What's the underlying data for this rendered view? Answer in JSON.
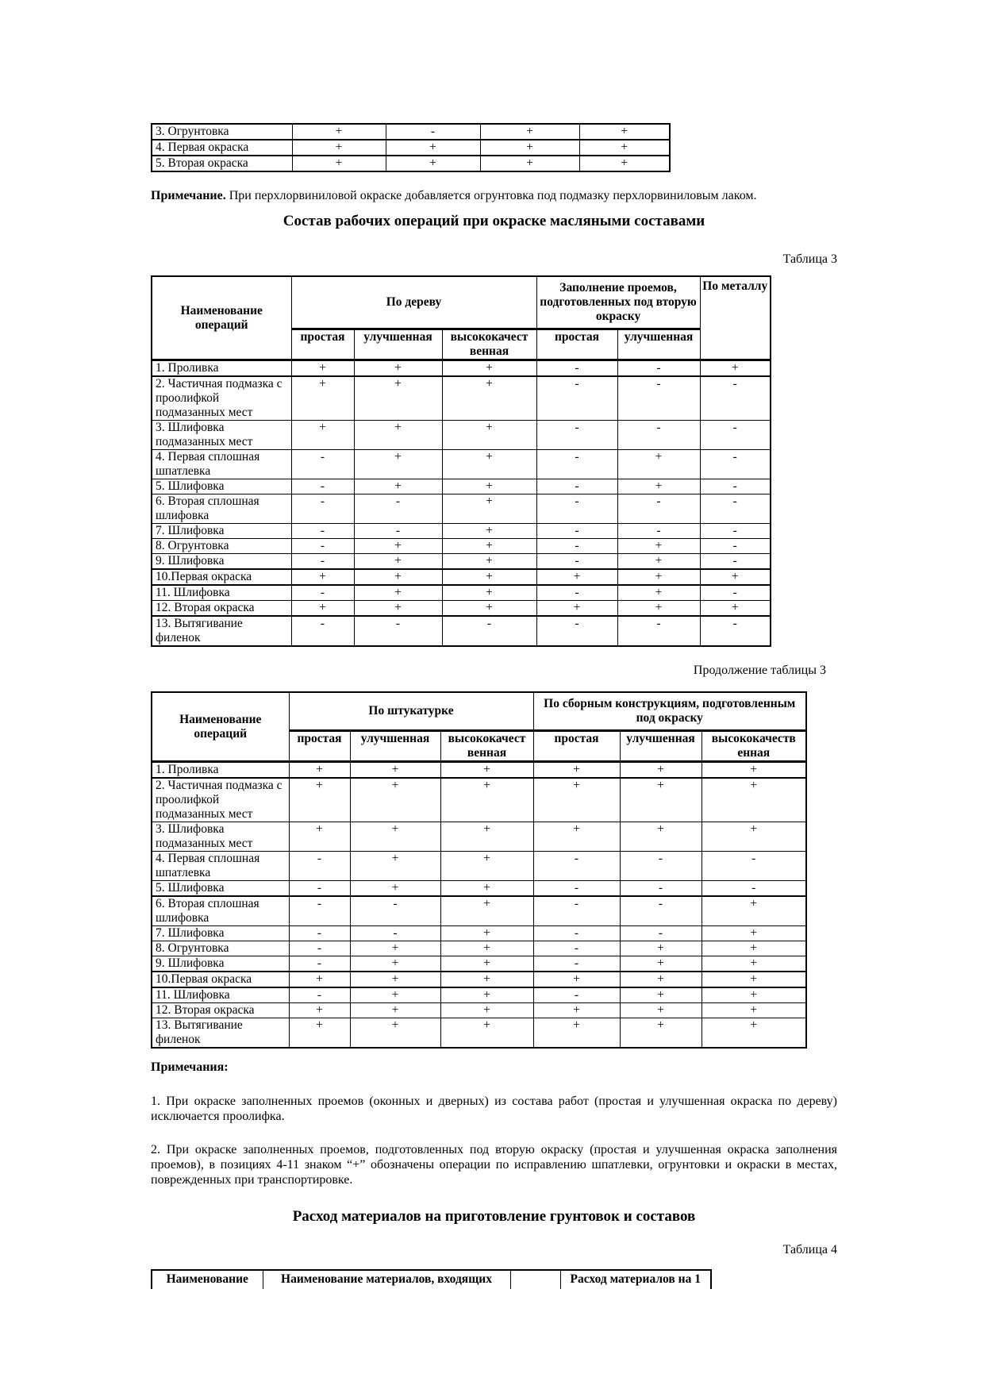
{
  "document": {
    "top_table": {
      "rows": [
        {
          "label": "3. Огрунтовка",
          "values": [
            "+",
            "-",
            "+",
            "+"
          ]
        },
        {
          "label": "4. Первая окраска",
          "values": [
            "+",
            "+",
            "+",
            "+"
          ]
        },
        {
          "label": "5. Вторая окраска",
          "values": [
            "+",
            "+",
            "+",
            "+"
          ]
        }
      ]
    },
    "top_note": {
      "label": "Примечание.",
      "text": " При перхлорвиниловой окраске добавляется огрунтовка под подмазку перхлорвиниловым лаком."
    },
    "oil_section": {
      "title": "Состав рабочих операций при окраске масляными составами",
      "caption": "Таблица 3",
      "table": {
        "operations_header": "Наименование операций",
        "groups": [
          {
            "label": "По дереву",
            "subs": [
              "простая",
              "улучшенная",
              "высококачест венная"
            ]
          },
          {
            "label": "Заполнение проемов, подготовленных под вторую окраску",
            "subs": [
              "простая",
              "улучшенная"
            ]
          },
          {
            "label": "По металлу",
            "subs": []
          }
        ],
        "rows": [
          {
            "label": "1. Проливка",
            "values": [
              "+",
              "+",
              "+",
              "-",
              "-",
              "+"
            ]
          },
          {
            "label": "2. Частичная подмазка с проолифкой подмазанных мест",
            "values": [
              "+",
              "+",
              "+",
              "-",
              "-",
              "-"
            ]
          },
          {
            "label": "3. Шлифовка подмазанных мест",
            "values": [
              "+",
              "+",
              "+",
              "-",
              "-",
              "-"
            ]
          },
          {
            "label": "4. Первая сплошная шпатлевка",
            "values": [
              "-",
              "+",
              "+",
              "-",
              "+",
              "-"
            ]
          },
          {
            "label": "5. Шлифовка",
            "values": [
              "-",
              "+",
              "+",
              "-",
              "+",
              "-"
            ]
          },
          {
            "label": "6. Вторая сплошная шлифовка",
            "values": [
              "-",
              "-",
              "+",
              "-",
              "-",
              "-"
            ]
          },
          {
            "label": "7. Шлифовка",
            "values": [
              "-",
              "-",
              "+",
              "-",
              "-",
              "-"
            ]
          },
          {
            "label": "8. Огрунтовка",
            "values": [
              "-",
              "+",
              "+",
              "-",
              "+",
              "-"
            ]
          },
          {
            "label": "9. Шлифовка",
            "values": [
              "-",
              "+",
              "+",
              "-",
              "+",
              "-"
            ]
          },
          {
            "label": "10.Первая окраска",
            "values": [
              "+",
              "+",
              "+",
              "+",
              "+",
              "+"
            ]
          },
          {
            "label": "11. Шлифовка",
            "values": [
              "-",
              "+",
              "+",
              "-",
              "+",
              "-"
            ]
          },
          {
            "label": "12. Вторая окраска",
            "values": [
              "+",
              "+",
              "+",
              "+",
              "+",
              "+"
            ]
          },
          {
            "label": "13. Вытягивание филенок",
            "values": [
              "-",
              "-",
              "-",
              "-",
              "-",
              "-"
            ]
          }
        ]
      },
      "continuation_caption": "Продолжение таблицы 3",
      "continuation_table": {
        "operations_header": "Наименование операций",
        "groups": [
          {
            "label": "По штукатурке",
            "subs": [
              "простая",
              "улучшенная",
              "высококачест венная"
            ]
          },
          {
            "label": "По сборным конструкциям, подготовленным под окраску",
            "subs": [
              "простая",
              "улучшенная",
              "высококачеств енная"
            ]
          }
        ],
        "rows": [
          {
            "label": "1. Проливка",
            "values": [
              "+",
              "+",
              "+",
              "+",
              "+",
              "+"
            ]
          },
          {
            "label": "2. Частичная подмазка с проолифкой подмазанных мест",
            "values": [
              "+",
              "+",
              "+",
              "+",
              "+",
              "+"
            ]
          },
          {
            "label": "3. Шлифовка подмазанных мест",
            "values": [
              "+",
              "+",
              "+",
              "+",
              "+",
              "+"
            ]
          },
          {
            "label": "4. Первая сплошная шпатлевка",
            "values": [
              "-",
              "+",
              "+",
              "-",
              "-",
              "-"
            ]
          },
          {
            "label": "5. Шлифовка",
            "values": [
              "-",
              "+",
              "+",
              "-",
              "-",
              "-"
            ]
          },
          {
            "label": "6. Вторая сплошная шлифовка",
            "values": [
              "-",
              "-",
              "+",
              "-",
              "-",
              "+"
            ]
          },
          {
            "label": "7. Шлифовка",
            "values": [
              "-",
              "-",
              "+",
              "-",
              "-",
              "+"
            ]
          },
          {
            "label": "8. Огрунтовка",
            "values": [
              "-",
              "+",
              "+",
              "-",
              "+",
              "+"
            ]
          },
          {
            "label": "9. Шлифовка",
            "values": [
              "-",
              "+",
              "+",
              "-",
              "+",
              "+"
            ]
          },
          {
            "label": "10.Первая окраска",
            "values": [
              "+",
              "+",
              "+",
              "+",
              "+",
              "+"
            ]
          },
          {
            "label": "11. Шлифовка",
            "values": [
              "-",
              "+",
              "+",
              "-",
              "+",
              "+"
            ]
          },
          {
            "label": "12. Вторая окраска",
            "values": [
              "+",
              "+",
              "+",
              "+",
              "+",
              "+"
            ]
          },
          {
            "label": "13. Вытягивание филенок",
            "values": [
              "+",
              "+",
              "+",
              "+",
              "+",
              "+"
            ]
          }
        ]
      }
    },
    "notes": {
      "heading": "Примечания:",
      "items": [
        "1. При окраске заполненных проемов (оконных и дверных) из состава работ (простая и улучшенная окраска по дереву) исключается проолифка.",
        "2. При окраске заполненных проемов, подготовленных под вторую окраску (простая и улучшенная окраска заполнения проемов), в позициях 4-11 знаком “+” обозначены операции по исправлению шпатлевки, огрунтовки и окраски в местах, поврежденных при транспортировке."
      ]
    },
    "materials_section": {
      "title": "Расход материалов на приготовление грунтовок и составов",
      "caption": "Таблица 4",
      "table_headers": [
        "Наименование",
        "Наименование материалов, входящих",
        "",
        "Расход материалов на 1"
      ]
    }
  }
}
